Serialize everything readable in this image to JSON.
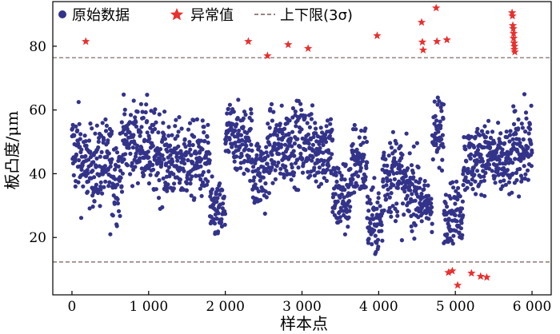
{
  "chart_data": {
    "type": "scatter",
    "xlabel": "样本点",
    "ylabel": "板凸度/μm",
    "xlim": [
      -250,
      6250
    ],
    "ylim": [
      2,
      94
    ],
    "x_ticks": [
      0,
      1000,
      2000,
      3000,
      4000,
      5000,
      6000
    ],
    "x_tick_labels": [
      "0",
      "1 000",
      "2 000",
      "3 000",
      "4 000",
      "5 000",
      "6 000"
    ],
    "y_ticks": [
      20,
      40,
      60,
      80
    ],
    "y_tick_labels": [
      "20",
      "40",
      "60",
      "80"
    ],
    "legend_position": "top-left",
    "legend": {
      "raw": "原始数据",
      "outlier": "异常值",
      "limits": "上下限(3σ)"
    },
    "colors": {
      "raw": "#33338a",
      "outlier": "#e8302f",
      "limits": "#7a5a5a"
    },
    "upper_limit": 76.4,
    "lower_limit": 12.3,
    "raw_segments": [
      {
        "x_start": 0,
        "x_end": 120,
        "mean": 47,
        "spread": 9
      },
      {
        "x_start": 120,
        "x_end": 330,
        "mean": 42,
        "spread": 8
      },
      {
        "x_start": 330,
        "x_end": 500,
        "mean": 43,
        "spread": 9
      },
      {
        "x_start": 500,
        "x_end": 650,
        "mean": 40,
        "spread": 10
      },
      {
        "x_start": 650,
        "x_end": 1000,
        "mean": 50,
        "spread": 8
      },
      {
        "x_start": 1000,
        "x_end": 1200,
        "mean": 46,
        "spread": 9
      },
      {
        "x_start": 1200,
        "x_end": 1500,
        "mean": 44,
        "spread": 8
      },
      {
        "x_start": 1500,
        "x_end": 1800,
        "mean": 44,
        "spread": 8
      },
      {
        "x_start": 1800,
        "x_end": 2000,
        "mean": 28,
        "spread": 6
      },
      {
        "x_start": 2000,
        "x_end": 2150,
        "mean": 52,
        "spread": 7
      },
      {
        "x_start": 2150,
        "x_end": 2350,
        "mean": 50,
        "spread": 7
      },
      {
        "x_start": 2350,
        "x_end": 2550,
        "mean": 40,
        "spread": 8
      },
      {
        "x_start": 2550,
        "x_end": 2800,
        "mean": 48,
        "spread": 8
      },
      {
        "x_start": 2800,
        "x_end": 3100,
        "mean": 50,
        "spread": 8
      },
      {
        "x_start": 3100,
        "x_end": 3400,
        "mean": 48,
        "spread": 8
      },
      {
        "x_start": 3400,
        "x_end": 3650,
        "mean": 33,
        "spread": 8
      },
      {
        "x_start": 3650,
        "x_end": 3850,
        "mean": 44,
        "spread": 8
      },
      {
        "x_start": 3850,
        "x_end": 4050,
        "mean": 25,
        "spread": 7
      },
      {
        "x_start": 4050,
        "x_end": 4300,
        "mean": 40,
        "spread": 9
      },
      {
        "x_start": 4300,
        "x_end": 4550,
        "mean": 35,
        "spread": 8
      },
      {
        "x_start": 4550,
        "x_end": 4700,
        "mean": 30,
        "spread": 5
      },
      {
        "x_start": 4700,
        "x_end": 4850,
        "mean": 52,
        "spread": 8
      },
      {
        "x_start": 4850,
        "x_end": 5100,
        "mean": 28,
        "spread": 6
      },
      {
        "x_start": 5100,
        "x_end": 5300,
        "mean": 44,
        "spread": 7
      },
      {
        "x_start": 5300,
        "x_end": 5500,
        "mean": 46,
        "spread": 7
      },
      {
        "x_start": 5500,
        "x_end": 5750,
        "mean": 43,
        "spread": 7
      },
      {
        "x_start": 5750,
        "x_end": 6000,
        "mean": 48,
        "spread": 8
      }
    ],
    "outliers": [
      {
        "x": 180,
        "y": 81.5
      },
      {
        "x": 2300,
        "y": 81.5
      },
      {
        "x": 2550,
        "y": 77
      },
      {
        "x": 2820,
        "y": 80.5
      },
      {
        "x": 3080,
        "y": 79.3
      },
      {
        "x": 3980,
        "y": 83.3
      },
      {
        "x": 4560,
        "y": 87.5
      },
      {
        "x": 4570,
        "y": 81.3
      },
      {
        "x": 4580,
        "y": 78.8
      },
      {
        "x": 4750,
        "y": 92
      },
      {
        "x": 4760,
        "y": 81.5
      },
      {
        "x": 4890,
        "y": 82
      },
      {
        "x": 4910,
        "y": 9
      },
      {
        "x": 4960,
        "y": 9.5
      },
      {
        "x": 5030,
        "y": 5
      },
      {
        "x": 5210,
        "y": 8.8
      },
      {
        "x": 5330,
        "y": 7.8
      },
      {
        "x": 5410,
        "y": 7.5
      },
      {
        "x": 5740,
        "y": 90.5
      },
      {
        "x": 5745,
        "y": 89.5
      },
      {
        "x": 5750,
        "y": 86.5
      },
      {
        "x": 5755,
        "y": 85.5
      },
      {
        "x": 5760,
        "y": 84
      },
      {
        "x": 5760,
        "y": 82.5
      },
      {
        "x": 5765,
        "y": 81
      },
      {
        "x": 5770,
        "y": 80
      },
      {
        "x": 5770,
        "y": 79
      },
      {
        "x": 5775,
        "y": 78.2
      }
    ]
  }
}
